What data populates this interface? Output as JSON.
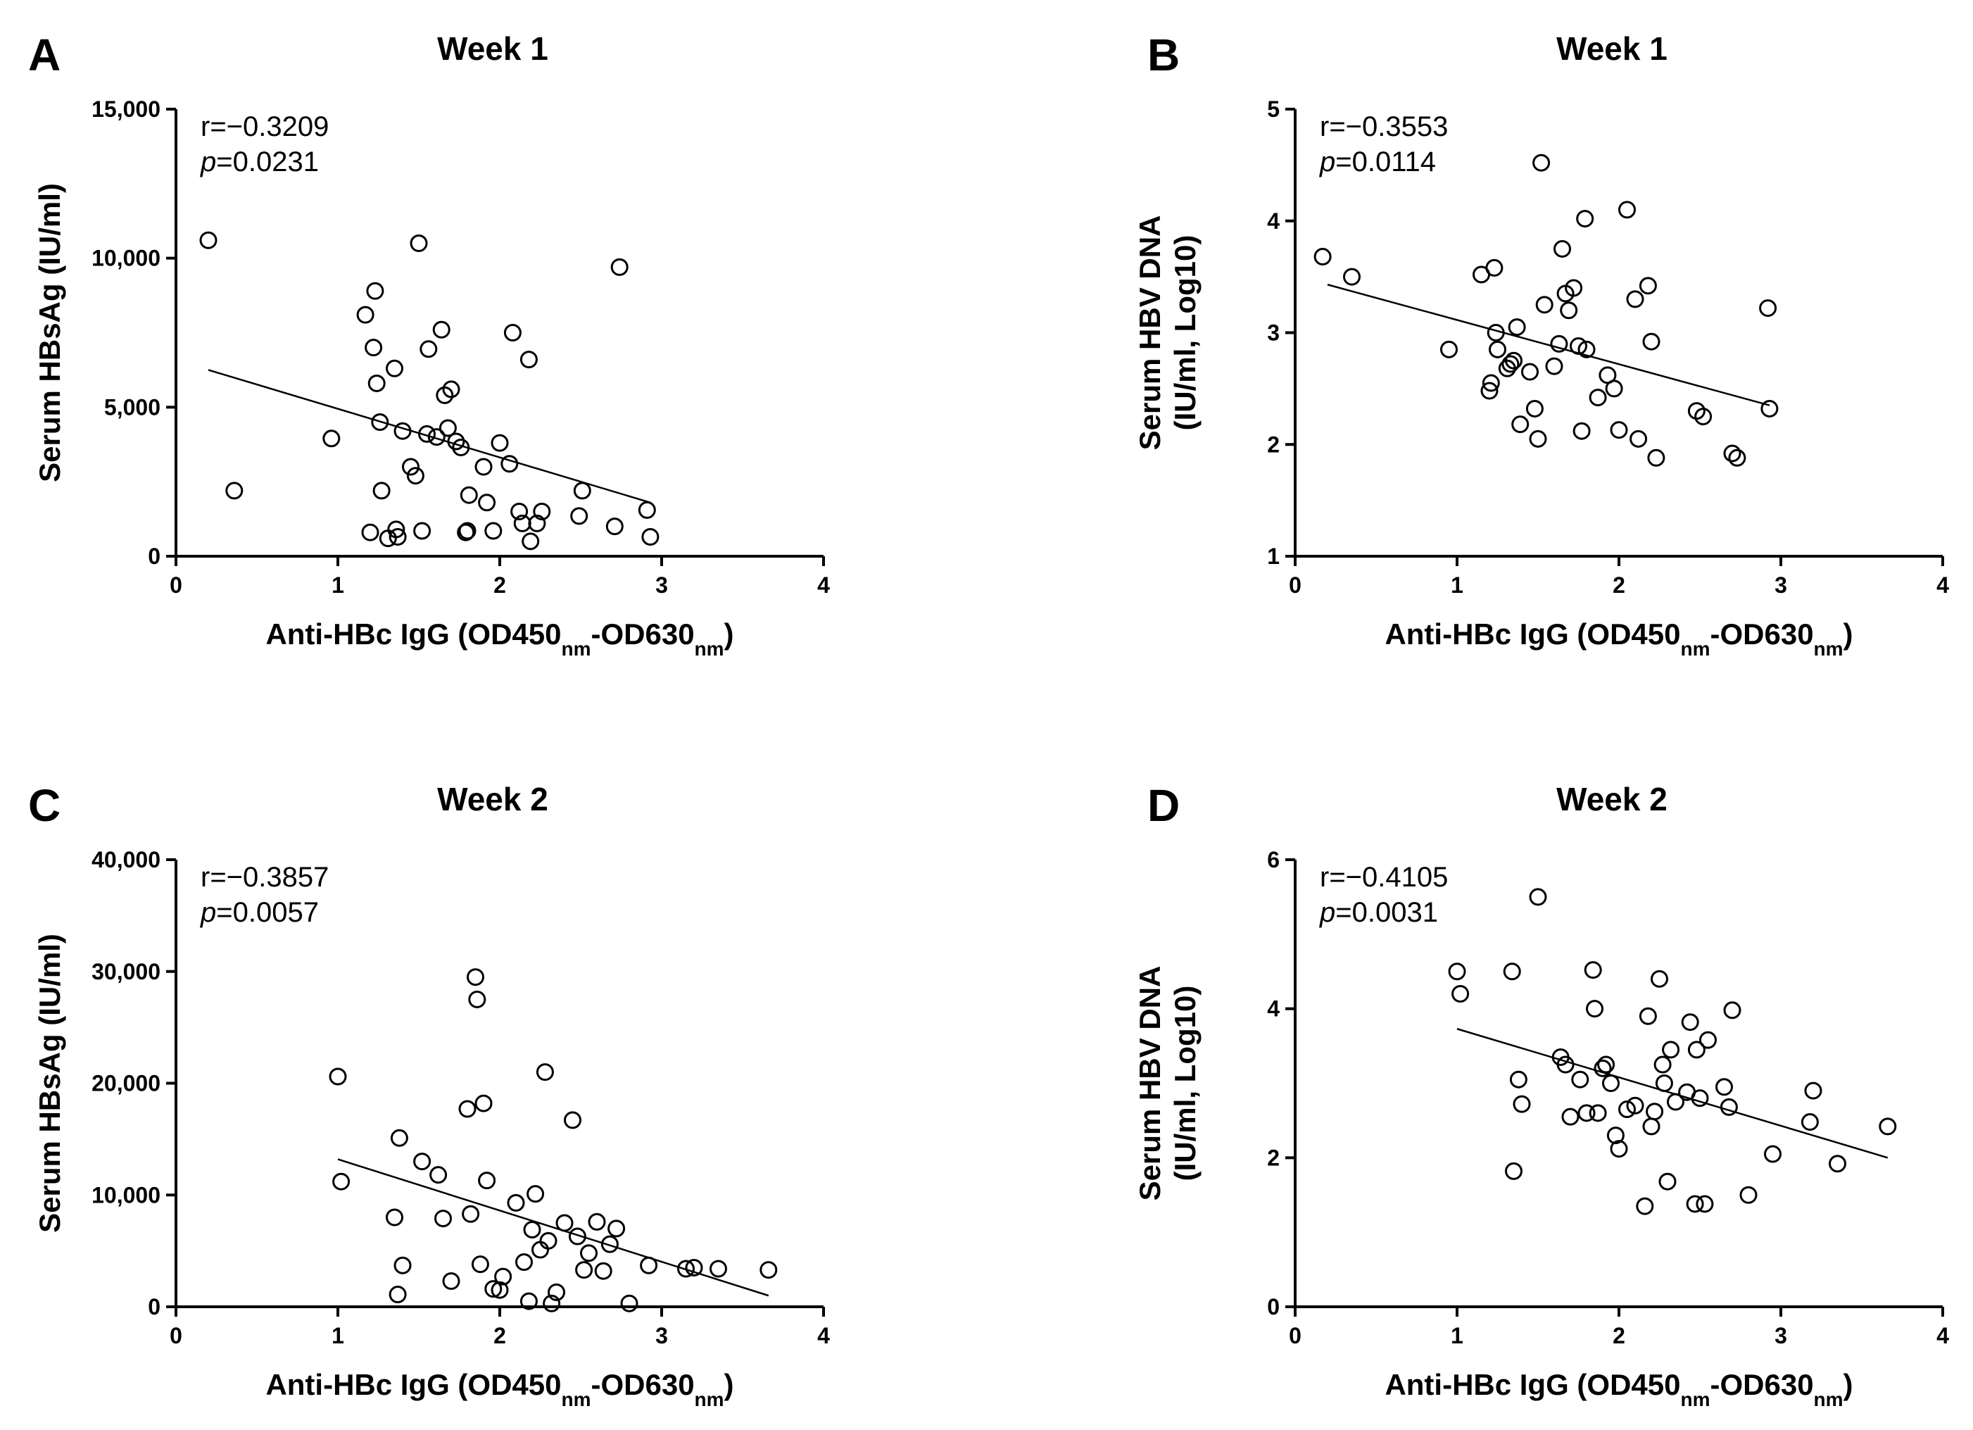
{
  "chart_data": [
    {
      "panel": "A",
      "type": "scatter",
      "title": "Week 1",
      "xlabel_parts": [
        "Anti-HBc IgG (OD450",
        "nm",
        "-OD630",
        "nm",
        ")"
      ],
      "ylabel_lines": [
        "Serum HBsAg (IU/ml)"
      ],
      "xlim": [
        0,
        4
      ],
      "ylim": [
        0,
        15000
      ],
      "xticks": [
        0,
        1,
        2,
        3,
        4
      ],
      "yticks": [
        0,
        5000,
        10000,
        15000
      ],
      "ytick_labels": [
        "0",
        "5,000",
        "10,000",
        "15,000"
      ],
      "stat_r": "r=−0.3209",
      "stat_p_italic": "p",
      "stat_p_value": "=0.0231",
      "fit_line": {
        "x": [
          0.2,
          2.93
        ],
        "y": [
          6250,
          1800
        ]
      },
      "x": [
        0.2,
        0.36,
        0.96,
        1.17,
        1.2,
        1.22,
        1.23,
        1.24,
        1.26,
        1.27,
        1.31,
        1.35,
        1.36,
        1.37,
        1.4,
        1.45,
        1.48,
        1.5,
        1.52,
        1.55,
        1.56,
        1.61,
        1.64,
        1.66,
        1.68,
        1.7,
        1.73,
        1.76,
        1.79,
        1.8,
        1.81,
        1.9,
        1.92,
        1.96,
        2.0,
        2.06,
        2.08,
        2.12,
        2.14,
        2.18,
        2.19,
        2.23,
        2.26,
        2.49,
        2.51,
        2.71,
        2.74,
        2.91,
        2.93
      ],
      "y": [
        10600,
        2200,
        3950,
        8100,
        800,
        7000,
        8900,
        5800,
        4500,
        2200,
        600,
        6300,
        900,
        650,
        4200,
        3000,
        2700,
        10500,
        850,
        4100,
        6950,
        4000,
        7600,
        5400,
        4300,
        5600,
        3850,
        3650,
        800,
        850,
        2050,
        3000,
        1800,
        850,
        3800,
        3100,
        7500,
        1500,
        1100,
        6600,
        500,
        1100,
        1500,
        1350,
        2200,
        1000,
        9700,
        1550,
        650
      ]
    },
    {
      "panel": "B",
      "type": "scatter",
      "title": "Week 1",
      "xlabel_parts": [
        "Anti-HBc IgG (OD450",
        "nm",
        "-OD630",
        "nm",
        ")"
      ],
      "ylabel_lines": [
        "Serum HBV DNA",
        "(IU/ml, Log10)"
      ],
      "xlim": [
        0,
        4
      ],
      "ylim": [
        1,
        5
      ],
      "xticks": [
        0,
        1,
        2,
        3,
        4
      ],
      "yticks": [
        1,
        2,
        3,
        4,
        5
      ],
      "ytick_labels": [
        "1",
        "2",
        "3",
        "4",
        "5"
      ],
      "stat_r": "r=−0.3553",
      "stat_p_italic": "p",
      "stat_p_value": "=0.0114",
      "fit_line": {
        "x": [
          0.2,
          2.93
        ],
        "y": [
          3.43,
          2.35
        ]
      },
      "x": [
        0.17,
        0.35,
        0.95,
        1.15,
        1.2,
        1.21,
        1.23,
        1.24,
        1.25,
        1.31,
        1.33,
        1.35,
        1.37,
        1.39,
        1.45,
        1.48,
        1.5,
        1.52,
        1.54,
        1.6,
        1.63,
        1.65,
        1.67,
        1.69,
        1.72,
        1.75,
        1.77,
        1.79,
        1.8,
        1.87,
        1.93,
        1.97,
        2.0,
        2.05,
        2.1,
        2.12,
        2.18,
        2.2,
        2.23,
        2.48,
        2.52,
        2.7,
        2.73,
        2.92,
        2.93
      ],
      "y": [
        3.68,
        3.5,
        2.85,
        3.52,
        2.48,
        2.55,
        3.58,
        3.0,
        2.85,
        2.68,
        2.72,
        2.75,
        3.05,
        2.18,
        2.65,
        2.32,
        2.05,
        4.52,
        3.25,
        2.7,
        2.9,
        3.75,
        3.35,
        3.2,
        3.4,
        2.88,
        2.12,
        4.02,
        2.85,
        2.42,
        2.62,
        2.5,
        2.13,
        4.1,
        3.3,
        2.05,
        3.42,
        2.92,
        1.88,
        2.3,
        2.25,
        1.92,
        1.88,
        3.22,
        2.32
      ]
    },
    {
      "panel": "C",
      "type": "scatter",
      "title": "Week 2",
      "xlabel_parts": [
        "Anti-HBc IgG (OD450",
        "nm",
        "-OD630",
        "nm",
        ")"
      ],
      "ylabel_lines": [
        "Serum HBsAg (IU/ml)"
      ],
      "xlim": [
        0,
        4
      ],
      "ylim": [
        0,
        40000
      ],
      "xticks": [
        0,
        1,
        2,
        3,
        4
      ],
      "yticks": [
        0,
        10000,
        20000,
        30000,
        40000
      ],
      "ytick_labels": [
        "0",
        "10,000",
        "20,000",
        "30,000",
        "40,000"
      ],
      "stat_r": "r=−0.3857",
      "stat_p_italic": "p",
      "stat_p_value": "=0.0057",
      "fit_line": {
        "x": [
          1.0,
          3.66
        ],
        "y": [
          13200,
          1000
        ]
      },
      "x": [
        1.0,
        1.02,
        1.35,
        1.37,
        1.38,
        1.4,
        1.52,
        1.62,
        1.65,
        1.7,
        1.8,
        1.82,
        1.85,
        1.86,
        1.88,
        1.9,
        1.92,
        1.96,
        2.0,
        2.02,
        2.1,
        2.15,
        2.18,
        2.2,
        2.22,
        2.25,
        2.28,
        2.3,
        2.32,
        2.35,
        2.4,
        2.45,
        2.48,
        2.52,
        2.55,
        2.6,
        2.64,
        2.68,
        2.72,
        2.8,
        2.92,
        3.15,
        3.2,
        3.35,
        3.66
      ],
      "y": [
        20600,
        11200,
        8000,
        1100,
        15100,
        3700,
        13000,
        11800,
        7900,
        2300,
        17700,
        8300,
        29500,
        27500,
        3800,
        18200,
        11300,
        1600,
        1500,
        2700,
        9300,
        4000,
        500,
        6900,
        10100,
        5100,
        21000,
        5900,
        300,
        1300,
        7500,
        16700,
        6300,
        3300,
        4800,
        7600,
        3200,
        5600,
        7000,
        300,
        3700,
        3400,
        3500,
        3400,
        3300
      ]
    },
    {
      "panel": "D",
      "type": "scatter",
      "title": "Week 2",
      "xlabel_parts": [
        "Anti-HBc IgG (OD450",
        "nm",
        "-OD630",
        "nm",
        ")"
      ],
      "ylabel_lines": [
        "Serum HBV DNA",
        "(IU/ml, Log10)"
      ],
      "xlim": [
        0,
        4
      ],
      "ylim": [
        0,
        6
      ],
      "xticks": [
        0,
        1,
        2,
        3,
        4
      ],
      "yticks": [
        0,
        2,
        4,
        6
      ],
      "ytick_labels": [
        "0",
        "2",
        "4",
        "6"
      ],
      "stat_r": "r=−0.4105",
      "stat_p_italic": "p",
      "stat_p_value": "=0.0031",
      "fit_line": {
        "x": [
          1.0,
          3.66
        ],
        "y": [
          3.73,
          2.0
        ]
      },
      "x": [
        1.0,
        1.02,
        1.34,
        1.35,
        1.38,
        1.4,
        1.5,
        1.64,
        1.67,
        1.7,
        1.76,
        1.8,
        1.84,
        1.85,
        1.87,
        1.9,
        1.92,
        1.95,
        1.98,
        2.0,
        2.05,
        2.1,
        2.16,
        2.18,
        2.2,
        2.22,
        2.25,
        2.27,
        2.28,
        2.3,
        2.32,
        2.35,
        2.42,
        2.44,
        2.47,
        2.48,
        2.5,
        2.53,
        2.55,
        2.65,
        2.68,
        2.7,
        2.8,
        2.95,
        3.18,
        3.2,
        3.35,
        3.66
      ],
      "y": [
        4.5,
        4.2,
        4.5,
        1.82,
        3.05,
        2.72,
        5.5,
        3.35,
        3.25,
        2.55,
        3.05,
        2.6,
        4.52,
        4.0,
        2.6,
        3.2,
        3.25,
        3.0,
        2.3,
        2.12,
        2.65,
        2.7,
        1.35,
        3.9,
        2.42,
        2.62,
        4.4,
        3.25,
        3.0,
        1.68,
        3.45,
        2.75,
        2.88,
        3.82,
        1.38,
        3.45,
        2.8,
        1.38,
        3.58,
        2.95,
        2.68,
        3.98,
        1.5,
        2.05,
        2.48,
        2.9,
        1.92,
        2.42
      ]
    }
  ]
}
